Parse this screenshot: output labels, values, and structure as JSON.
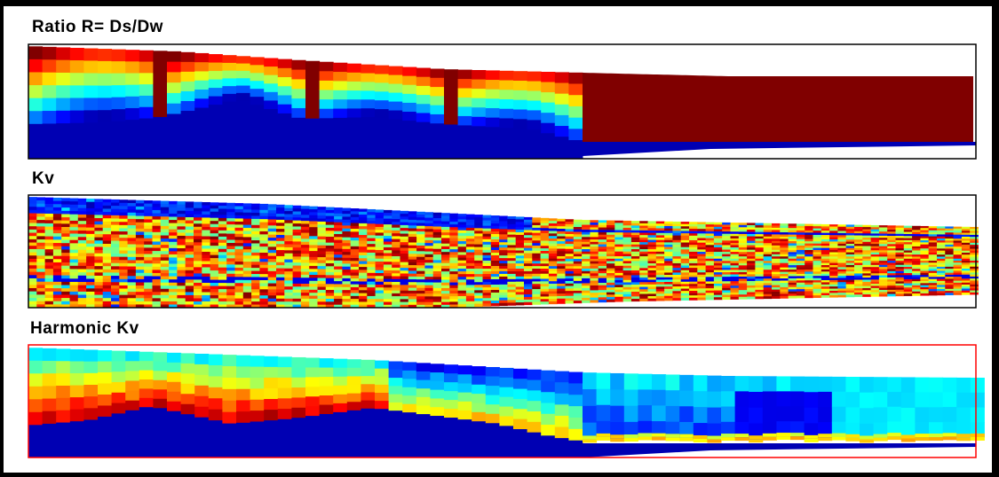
{
  "chart_data": [
    {
      "type": "heatmap",
      "title": "Ratio R= Ds/Dw",
      "colormap": "jet",
      "colors": [
        "#0000ff",
        "#00ffff",
        "#00ff00",
        "#ffff00",
        "#ff0000"
      ]
    },
    {
      "type": "heatmap",
      "title": "Kv",
      "colormap": "jet",
      "colors": [
        "#0000ff",
        "#00ffff",
        "#00ff00",
        "#ffff00",
        "#ff0000"
      ]
    },
    {
      "type": "heatmap",
      "title": "Harmonic Kv",
      "colormap": "jet",
      "colors": [
        "#0000ff",
        "#00ffff",
        "#00ff00",
        "#ffff00",
        "#ff0000"
      ],
      "frame_color": "#ff0000"
    }
  ]
}
